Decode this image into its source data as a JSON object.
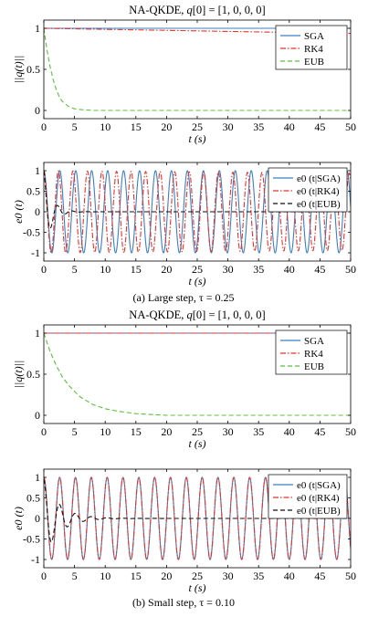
{
  "captions": {
    "a": "(a) Large step, τ = 0.25",
    "b": "(b) Small step, τ = 0.10"
  },
  "colors": {
    "sga": "#3b7fc4",
    "rk4": "#e8322c",
    "eub": "#5cbf3a",
    "eub_e0": "#111111"
  },
  "chart_data": [
    {
      "type": "line",
      "title": "NA-QKDE, q[0] = [1, 0, 0, 0]",
      "xlabel": "t (s)",
      "ylabel": "||q(t)||",
      "xlim": [
        0,
        50
      ],
      "ylim": [
        -0.1,
        1.1
      ],
      "xticks": [
        0,
        5,
        10,
        15,
        20,
        25,
        30,
        35,
        40,
        45,
        50
      ],
      "yticks": [
        0,
        0.5,
        1
      ],
      "legend": {
        "placement": "top-right",
        "entries": [
          "SGA",
          "RK4",
          "EUB"
        ]
      },
      "series": [
        {
          "name": "SGA",
          "x": [
            0,
            50
          ],
          "y": [
            1.0,
            1.0
          ]
        },
        {
          "name": "RK4",
          "x": [
            0,
            10,
            20,
            30,
            40,
            50
          ],
          "y": [
            1.0,
            0.987,
            0.975,
            0.962,
            0.95,
            0.938
          ]
        },
        {
          "name": "EUB",
          "x": [
            0,
            0.5,
            1,
            1.5,
            2,
            2.5,
            3,
            4,
            5,
            6,
            8,
            10,
            50
          ],
          "y": [
            1.0,
            0.74,
            0.54,
            0.38,
            0.26,
            0.17,
            0.11,
            0.05,
            0.02,
            0.01,
            0.0,
            0.0,
            0.0
          ]
        }
      ]
    },
    {
      "type": "line",
      "title": "",
      "xlabel": "t (s)",
      "ylabel": "e0 (t)",
      "xlim": [
        0,
        50
      ],
      "ylim": [
        -1.2,
        1.2
      ],
      "xticks": [
        0,
        5,
        10,
        15,
        20,
        25,
        30,
        35,
        40,
        45,
        50
      ],
      "yticks": [
        -1,
        -0.5,
        0,
        0.5,
        1
      ],
      "legend": {
        "placement": "top-right",
        "entries": [
          "e0 (t|SGA)",
          "e0 (t|RK4)",
          "e0 (t|EUB)"
        ]
      },
      "series": [
        {
          "name": "e0 (t|SGA)",
          "form": "cos",
          "amplitude": 1.0,
          "period": 2.6,
          "x_range": [
            0,
            50
          ]
        },
        {
          "name": "e0 (t|RK4)",
          "form": "cos",
          "amplitude": 1.0,
          "period": 2.37,
          "amplitude_decay_per_s": 0.0012,
          "x_range": [
            0,
            50
          ]
        },
        {
          "name": "e0 (t|EUB)",
          "form": "damped_cos",
          "amplitude": 1.0,
          "period": 2.3,
          "decay_time_s": 1.2,
          "x_range": [
            0,
            50
          ]
        }
      ]
    },
    {
      "type": "line",
      "title": "NA-QKDE, q[0] = [1, 0, 0, 0]",
      "xlabel": "t (s)",
      "ylabel": "||q(t)||",
      "xlim": [
        0,
        50
      ],
      "ylim": [
        -0.1,
        1.1
      ],
      "xticks": [
        0,
        5,
        10,
        15,
        20,
        25,
        30,
        35,
        40,
        45,
        50
      ],
      "yticks": [
        0,
        0.5,
        1
      ],
      "legend": {
        "placement": "top-right",
        "entries": [
          "SGA",
          "RK4",
          "EUB"
        ]
      },
      "series": [
        {
          "name": "SGA",
          "x": [
            0,
            50
          ],
          "y": [
            1.0,
            1.0
          ]
        },
        {
          "name": "RK4",
          "x": [
            0,
            50
          ],
          "y": [
            1.0,
            1.0
          ]
        },
        {
          "name": "EUB",
          "x": [
            0,
            1,
            2,
            3,
            4,
            5,
            6,
            8,
            10,
            12,
            15,
            20,
            50
          ],
          "y": [
            1.0,
            0.78,
            0.61,
            0.47,
            0.37,
            0.29,
            0.22,
            0.13,
            0.08,
            0.05,
            0.02,
            0.0,
            0.0
          ]
        }
      ]
    },
    {
      "type": "line",
      "title": "",
      "xlabel": "t (s)",
      "ylabel": "e0 (t)",
      "xlim": [
        0,
        50
      ],
      "ylim": [
        -1.2,
        1.2
      ],
      "xticks": [
        0,
        5,
        10,
        15,
        20,
        25,
        30,
        35,
        40,
        45,
        50
      ],
      "yticks": [
        -1,
        -0.5,
        0,
        0.5,
        1
      ],
      "legend": {
        "placement": "top-right",
        "entries": [
          "e0 (t|SGA)",
          "e0 (t|RK4)",
          "e0 (t|EUB)"
        ]
      },
      "series": [
        {
          "name": "e0 (t|SGA)",
          "form": "cos",
          "amplitude": 1.0,
          "period": 2.58,
          "x_range": [
            0,
            50
          ]
        },
        {
          "name": "e0 (t|RK4)",
          "form": "cos",
          "amplitude": 1.0,
          "period": 2.58,
          "x_range": [
            0,
            50
          ]
        },
        {
          "name": "e0 (t|EUB)",
          "form": "damped_cos",
          "amplitude": 0.95,
          "period": 2.58,
          "decay_time_s": 2.5,
          "x_range": [
            0,
            50
          ]
        }
      ]
    }
  ]
}
